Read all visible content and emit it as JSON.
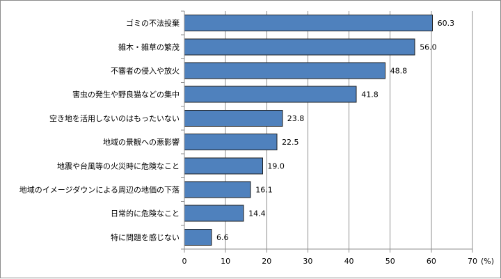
{
  "chart_data": {
    "type": "bar",
    "orientation": "horizontal",
    "categories": [
      "ゴミの不法投棄",
      "雑木・雑草の繁茂",
      "不審者の侵入や放火",
      "害虫の発生や野良猫などの集中",
      "空き地を活用しないのはもったいない",
      "地域の景観への悪影響",
      "地震や台風等の火災時に危険なこと",
      "地域のイメージダウンによる周辺の地価の下落",
      "日常的に危険なこと",
      "特に問題を感じない"
    ],
    "values": [
      60.3,
      56.0,
      48.8,
      41.8,
      23.8,
      22.5,
      19.0,
      16.1,
      14.4,
      6.6
    ],
    "value_labels": [
      "60.3",
      "56.0",
      "48.8",
      "41.8",
      "23.8",
      "22.5",
      "19.0",
      "16.1",
      "14.4",
      "6.6"
    ],
    "xlim": [
      0,
      70
    ],
    "xticks": [
      0,
      10,
      20,
      30,
      40,
      50,
      60,
      70
    ],
    "x_unit": "(%)",
    "title": "",
    "xlabel": "",
    "ylabel": "",
    "grid": "vertical major gridlines",
    "legend": "none",
    "colors": {
      "bar_fill": "#4f81bd",
      "bar_stroke": "#1f1f1f",
      "grid": "#8c8c8c",
      "axis": "#8c8c8c"
    }
  }
}
